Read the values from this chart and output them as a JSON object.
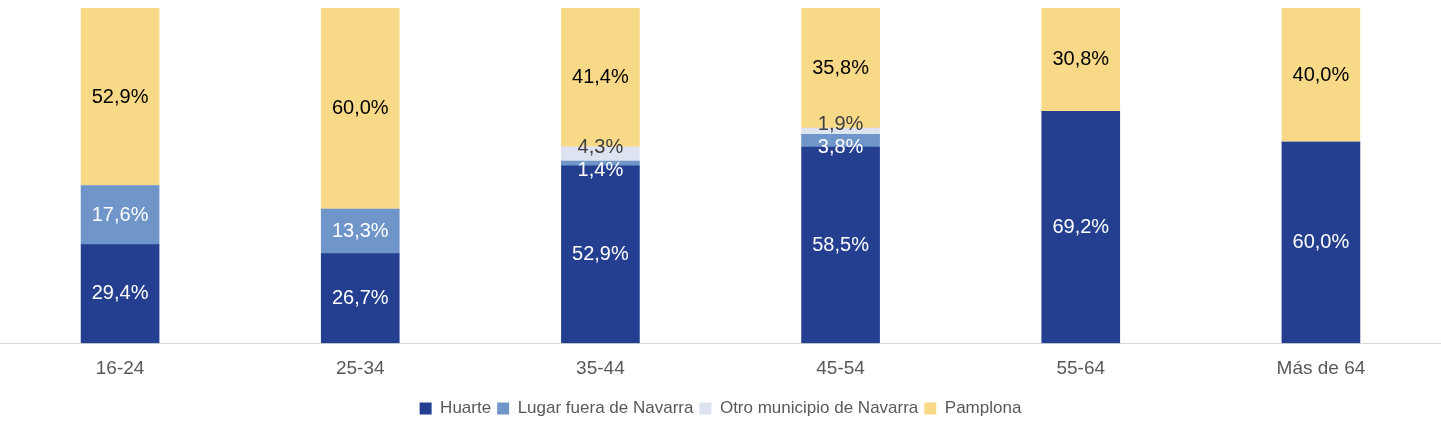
{
  "chart_data": {
    "type": "bar",
    "stacked": true,
    "categories": [
      "16-24",
      "25-34",
      "35-44",
      "45-54",
      "55-64",
      "Más de 64"
    ],
    "ylim": [
      0,
      100
    ],
    "tick_labels": "x",
    "grid": false,
    "legend": "bottom",
    "series": [
      {
        "name": "Huarte",
        "color": "#243f8f",
        "values": [
          29.4,
          26.7,
          52.9,
          58.5,
          69.2,
          60.0
        ],
        "value_labels": [
          "29,4%",
          "26,7%",
          "52,9%",
          "58,5%",
          "69,2%",
          "60,0%"
        ]
      },
      {
        "name": "Lugar fuera de Navarra",
        "color": "#6f95c9",
        "values": [
          17.6,
          13.3,
          1.4,
          3.8,
          0,
          0
        ],
        "value_labels": [
          "17,6%",
          "13,3%",
          "1,4%",
          "3,8%",
          null,
          null
        ]
      },
      {
        "name": "Otro municipio de Navarra",
        "color": "#dde3f1",
        "values": [
          0,
          0,
          4.3,
          1.9,
          0,
          0
        ],
        "value_labels": [
          null,
          null,
          "4,3%",
          "1,9%",
          null,
          null
        ]
      },
      {
        "name": "Pamplona",
        "color": "#f8d987",
        "values": [
          52.9,
          60.0,
          41.4,
          35.8,
          30.8,
          40.0
        ],
        "value_labels": [
          "52,9%",
          "60,0%",
          "41,4%",
          "35,8%",
          "30,8%",
          "40,0%"
        ]
      }
    ]
  }
}
